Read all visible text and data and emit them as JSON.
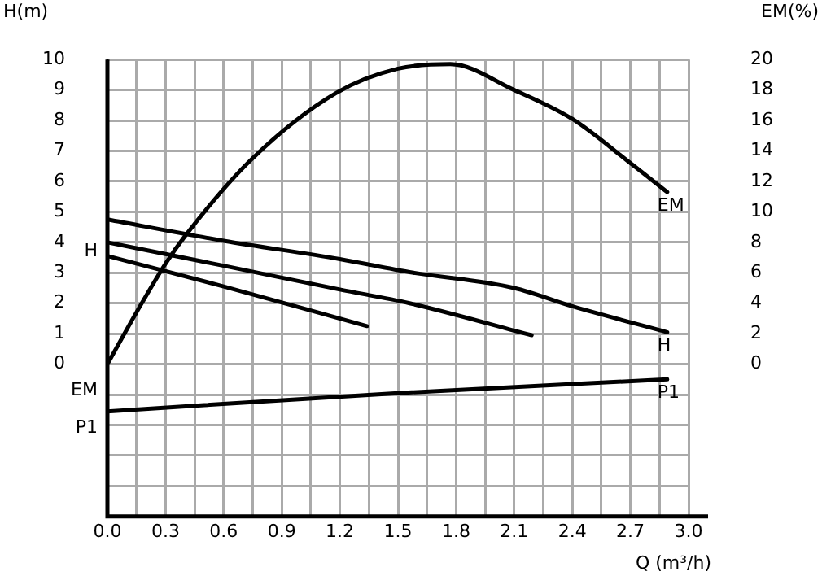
{
  "chart_data": {
    "type": "line",
    "xlabel": "Q (m³/h)",
    "ylabel": "H(m)",
    "y2label": "EM(%)",
    "xlim": [
      0,
      3.0
    ],
    "xticks": [
      {
        "value": 0,
        "label": "0.0"
      },
      {
        "value": 0.15,
        "label": null
      },
      {
        "value": 0.3,
        "label": "0.3"
      },
      {
        "value": 0.45,
        "label": null
      },
      {
        "value": 0.6,
        "label": "0.6"
      },
      {
        "value": 0.75,
        "label": null
      },
      {
        "value": 0.9,
        "label": "0.9"
      },
      {
        "value": 1.05,
        "label": null
      },
      {
        "value": 1.2,
        "label": "1.2"
      },
      {
        "value": 1.35,
        "label": null
      },
      {
        "value": 1.5,
        "label": "1.5"
      },
      {
        "value": 1.65,
        "label": null
      },
      {
        "value": 1.8,
        "label": "1.8"
      },
      {
        "value": 1.95,
        "label": null
      },
      {
        "value": 2.1,
        "label": "2.1"
      },
      {
        "value": 2.25,
        "label": null
      },
      {
        "value": 2.4,
        "label": "2.4"
      },
      {
        "value": 2.55,
        "label": null
      },
      {
        "value": 2.7,
        "label": "2.7"
      },
      {
        "value": 2.85,
        "label": null
      },
      {
        "value": 3.0,
        "label": "3.0"
      }
    ],
    "ylim": [
      -5,
      10
    ],
    "yticks": [
      {
        "value": -5,
        "label": null
      },
      {
        "value": -4,
        "label": null
      },
      {
        "value": -3,
        "label": null
      },
      {
        "value": -2,
        "label": null
      },
      {
        "value": -1,
        "label": null
      },
      0,
      1,
      2,
      3,
      4,
      5,
      6,
      7,
      8,
      9,
      10
    ],
    "y2lim": [
      -10,
      20
    ],
    "y2ticks": [
      0,
      2,
      4,
      6,
      8,
      10,
      12,
      14,
      16,
      18,
      20
    ],
    "grid": true,
    "legend": false,
    "marker": "none",
    "line_style": "solid",
    "series": [
      {
        "name": "EM",
        "color": "#000000",
        "axis": "y2",
        "x": [
          0,
          0.15,
          0.3,
          0.4,
          0.74,
          1.18,
          1.5,
          1.77,
          2.1,
          2.4,
          2.7,
          2.89
        ],
        "values": [
          0,
          3.4,
          6.6,
          8.4,
          13.4,
          17.8,
          19.4,
          19.7,
          18.0,
          16.1,
          13.2,
          11.3
        ]
      },
      {
        "name": "H",
        "color": "#000000",
        "x": [
          0,
          0.6,
          1.2,
          1.56,
          2.1,
          2.4,
          2.89
        ],
        "values": [
          4.75,
          4.05,
          3.45,
          3.02,
          2.5,
          1.9,
          1.05
        ]
      },
      {
        "color": "#000000",
        "x": [
          0,
          0.6,
          1.2,
          1.56,
          2.19
        ],
        "values": [
          4.0,
          3.23,
          2.45,
          2.0,
          0.95
        ]
      },
      {
        "color": "#000000",
        "x": [
          0,
          0.6,
          1.34
        ],
        "values": [
          3.55,
          2.55,
          1.25
        ]
      },
      {
        "name": "P1",
        "color": "#000000",
        "x": [
          0,
          1.5,
          2.89
        ],
        "values": [
          -1.55,
          -0.95,
          -0.5
        ]
      }
    ],
    "annotations": [
      "H",
      "EM",
      "P1"
    ]
  }
}
